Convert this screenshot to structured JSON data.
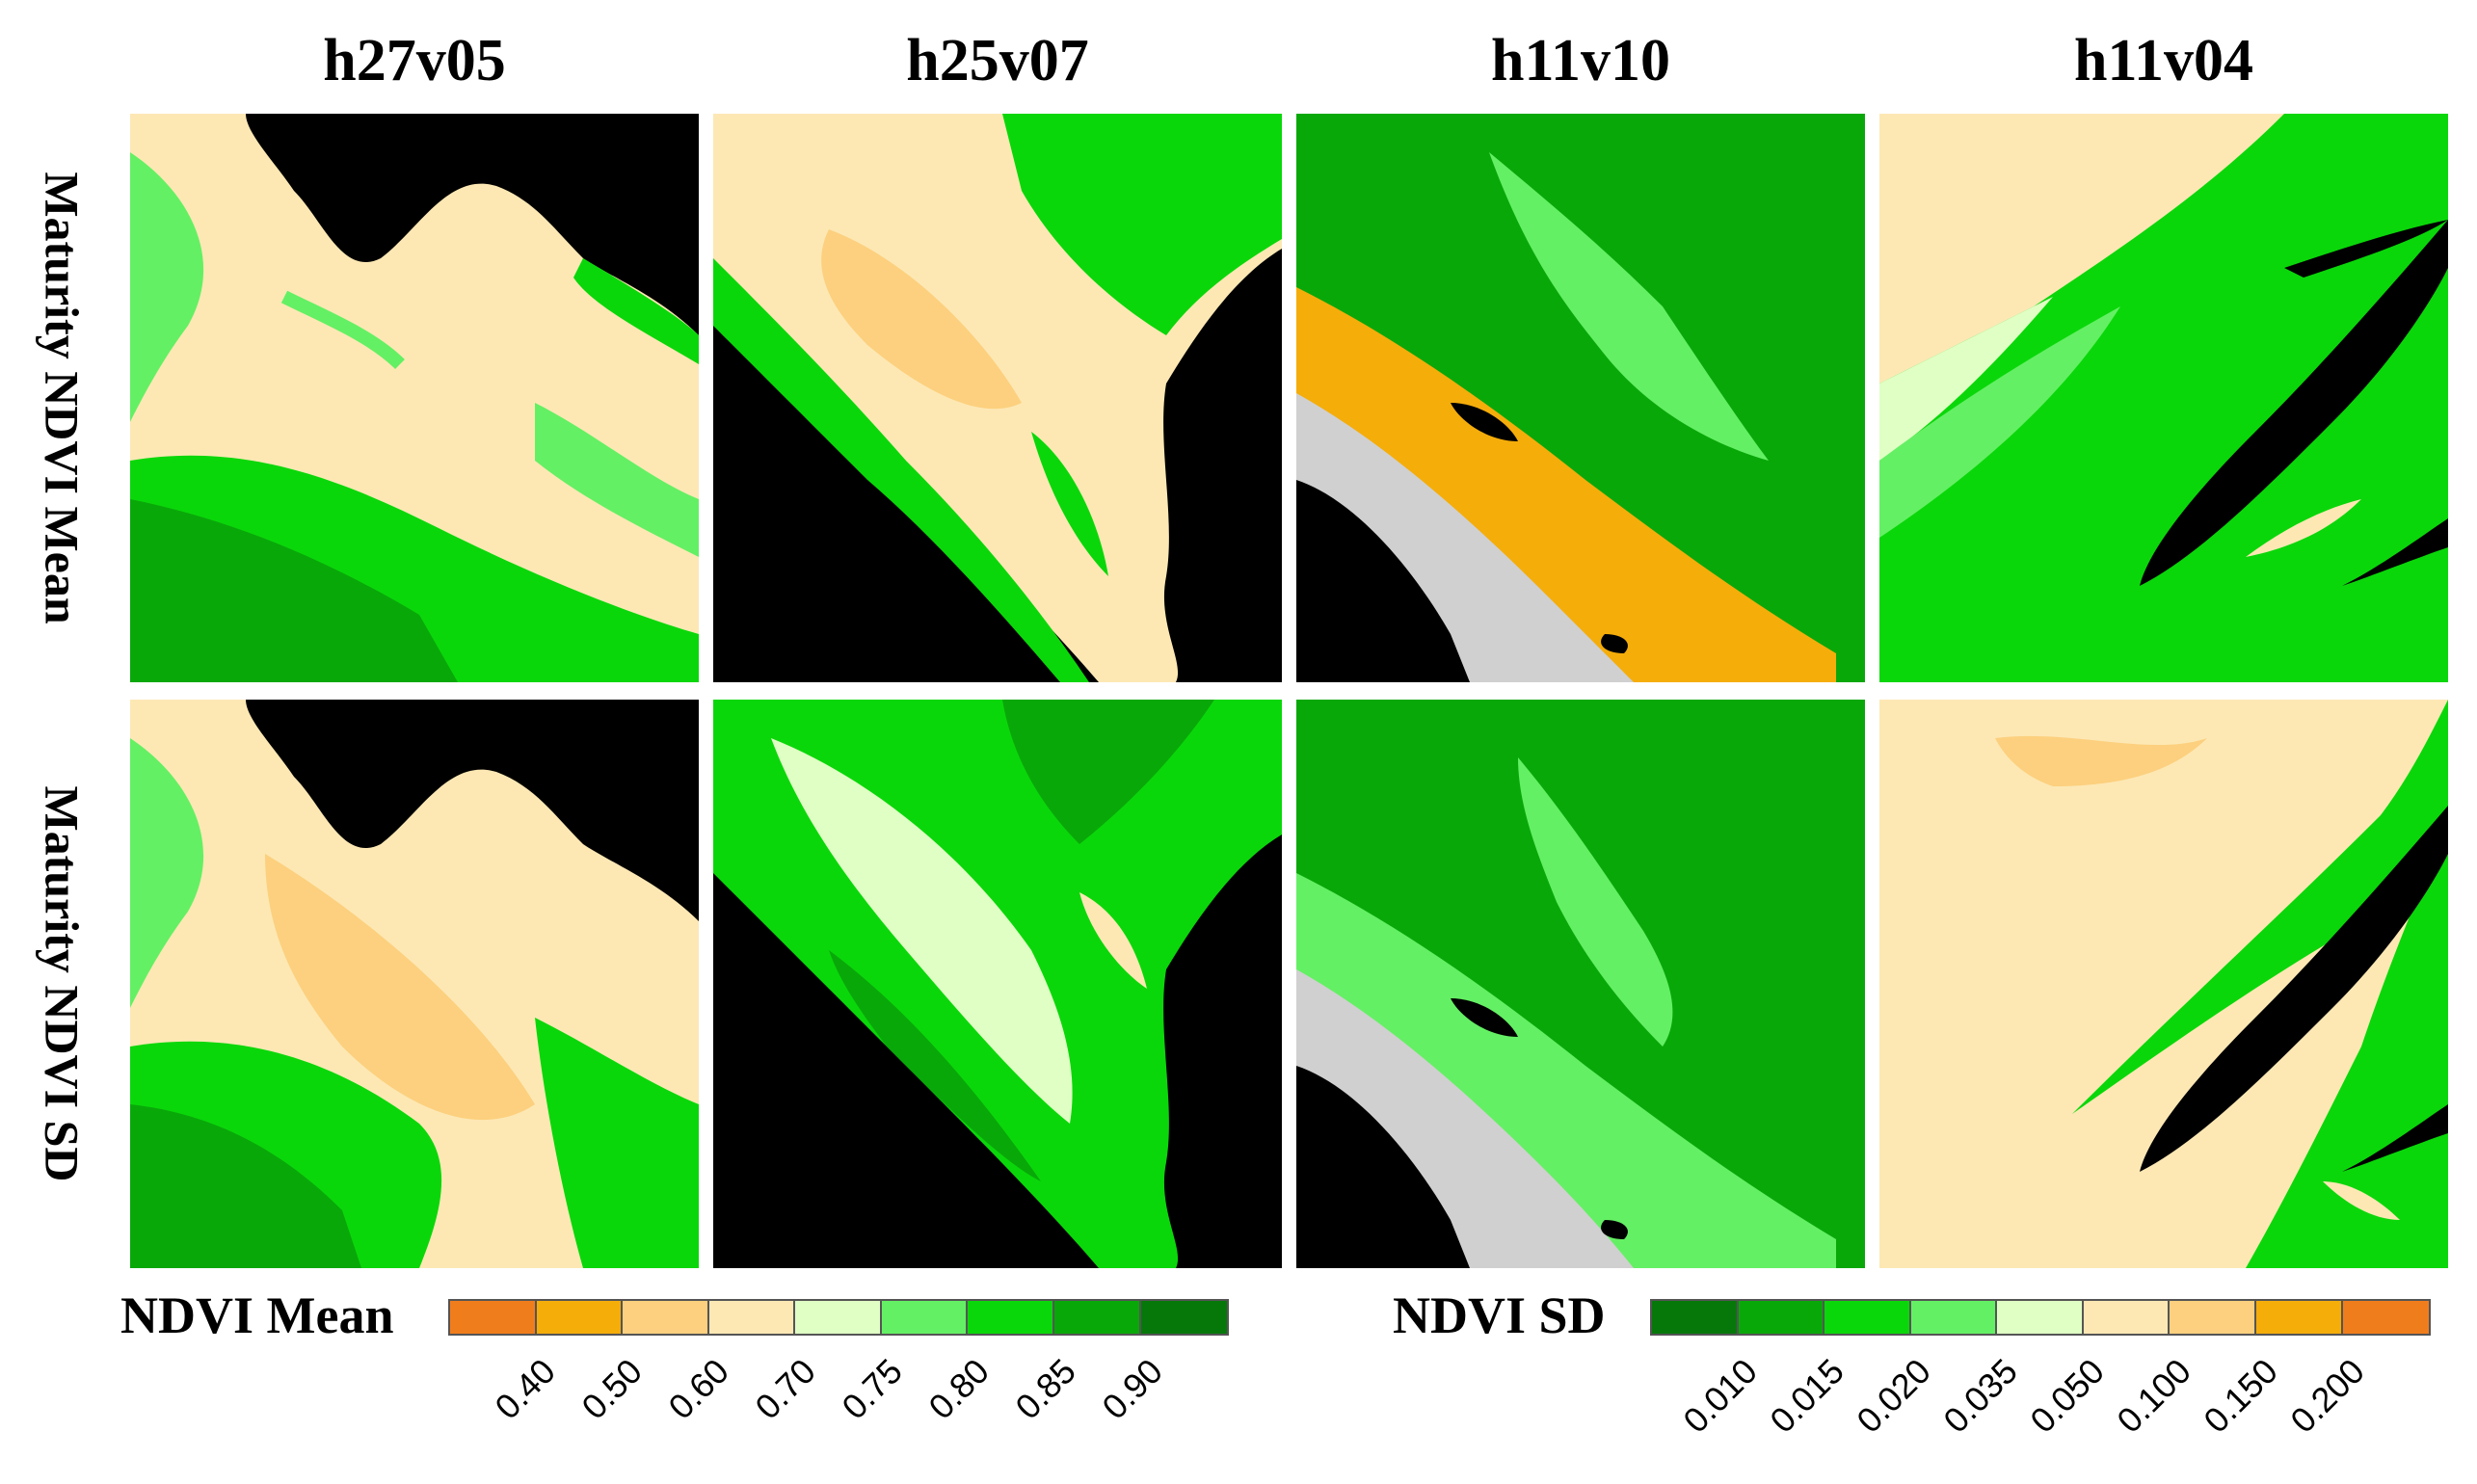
{
  "columns": [
    "h27v05",
    "h25v07",
    "h11v10",
    "h11v04"
  ],
  "rows": [
    "Maturity NDVI Mean",
    "Maturity NDVI SD"
  ],
  "legend_mean": {
    "title": "NDVI Mean",
    "colors": [
      "#f07d1c",
      "#f5ad0a",
      "#fcd07e",
      "#fde8b4",
      "#e0ffc4",
      "#64f064",
      "#0ad70a",
      "#09a809",
      "#06780a"
    ],
    "ticks": [
      "0.40",
      "0.50",
      "0.60",
      "0.70",
      "0.75",
      "0.80",
      "0.85",
      "0.90"
    ]
  },
  "legend_sd": {
    "title": "NDVI SD",
    "colors": [
      "#06780a",
      "#09a809",
      "#0ad70a",
      "#64f064",
      "#e0ffc4",
      "#fde8b4",
      "#fcd07e",
      "#f5ad0a",
      "#f07d1c"
    ],
    "ticks": [
      "0.010",
      "0.015",
      "0.020",
      "0.035",
      "0.050",
      "0.100",
      "0.150",
      "0.200"
    ]
  }
}
